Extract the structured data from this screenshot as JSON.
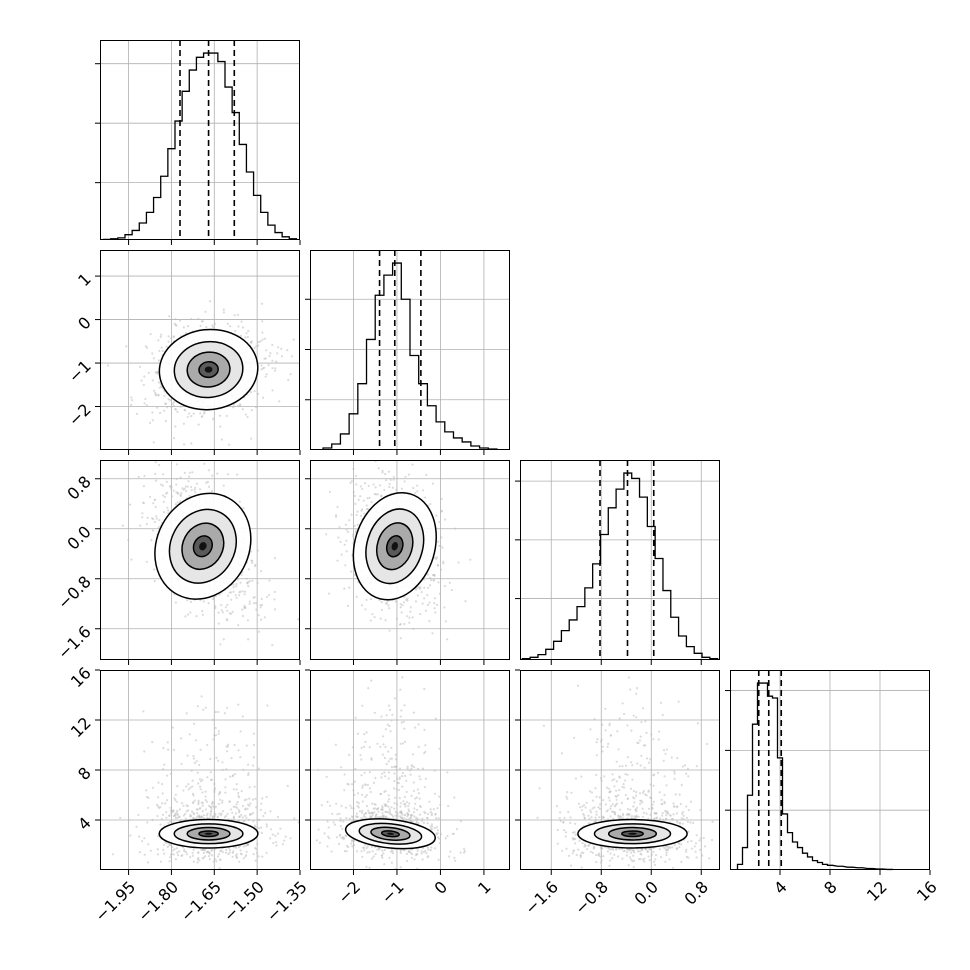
{
  "chart_data": {
    "type": "corner",
    "grid": true,
    "parameters": [
      {
        "id": "p0",
        "range": [
          -2.05,
          -1.35
        ],
        "ticks": [
          -1.95,
          -1.8,
          -1.65,
          -1.5,
          -1.35
        ],
        "tick_labels": [
          "−1.95",
          "−1.80",
          "−1.65",
          "−1.50",
          "−1.35"
        ],
        "quantiles": [
          -1.77,
          -1.67,
          -1.58
        ],
        "hist_x": [
          -2.025,
          -2.0,
          -1.975,
          -1.95,
          -1.925,
          -1.9,
          -1.875,
          -1.85,
          -1.825,
          -1.8,
          -1.775,
          -1.75,
          -1.725,
          -1.7,
          -1.675,
          -1.65,
          -1.625,
          -1.6,
          -1.575,
          -1.55,
          -1.525,
          -1.5,
          -1.475,
          -1.45,
          -1.425,
          -1.4,
          -1.375
        ],
        "hist_y": [
          0.3,
          0.6,
          1.0,
          2.5,
          4.5,
          8,
          13,
          20,
          30,
          43,
          56,
          70,
          80,
          86,
          88,
          88,
          84,
          72,
          60,
          45,
          32,
          21,
          13,
          7,
          3.5,
          1.5,
          0.6
        ],
        "hist_ticks": [
          27,
          55,
          83
        ]
      },
      {
        "id": "p1",
        "range": [
          -3.0,
          1.6
        ],
        "ticks": [
          -2,
          -1,
          0,
          1
        ],
        "tick_labels": [
          "−2",
          "−1",
          "0",
          "1"
        ],
        "quantiles": [
          -1.4,
          -1.05,
          -0.45
        ],
        "hist_x": [
          -2.6,
          -2.4,
          -2.2,
          -2.0,
          -1.8,
          -1.6,
          -1.4,
          -1.2,
          -1.0,
          -0.8,
          -0.6,
          -0.4,
          -0.2,
          0.0,
          0.2,
          0.4,
          0.6,
          0.8,
          1.0,
          1.2
        ],
        "hist_y": [
          1,
          3,
          8,
          18,
          33,
          55,
          77,
          87,
          93,
          75,
          47,
          33,
          22,
          14,
          9,
          6,
          4,
          2,
          1,
          0.5
        ],
        "hist_ticks": [
          25,
          50,
          75
        ]
      },
      {
        "id": "p2",
        "range": [
          -2.1,
          1.1
        ],
        "ticks": [
          -1.6,
          -0.8,
          0.0,
          0.8
        ],
        "tick_labels": [
          "−1.6",
          "−0.8",
          "0.0",
          "0.8"
        ],
        "quantiles": [
          -0.82,
          -0.38,
          0.04
        ],
        "hist_x": [
          -2.0,
          -1.875,
          -1.75,
          -1.625,
          -1.5,
          -1.375,
          -1.25,
          -1.125,
          -1.0,
          -0.875,
          -0.75,
          -0.625,
          -0.5,
          -0.375,
          -0.25,
          -0.125,
          0.0,
          0.125,
          0.25,
          0.375,
          0.5,
          0.625,
          0.75,
          0.875,
          1.0
        ],
        "hist_y": [
          0.5,
          1,
          2,
          4,
          7,
          11,
          15,
          20,
          27,
          36,
          47,
          57,
          64,
          70,
          68,
          61,
          50,
          38,
          26,
          16,
          9,
          5,
          2.5,
          1,
          0.5
        ],
        "hist_ticks": [
          23,
          45,
          67
        ]
      },
      {
        "id": "p3",
        "range": [
          0,
          16
        ],
        "ticks": [
          4,
          8,
          12,
          16
        ],
        "tick_labels": [
          "4",
          "8",
          "12",
          "16"
        ],
        "quantiles": [
          2.3,
          3.1,
          4.1
        ],
        "hist_x": [
          0.8,
          1.2,
          1.6,
          2.0,
          2.4,
          2.8,
          3.2,
          3.6,
          4.0,
          4.4,
          4.8,
          5.2,
          5.6,
          6.0,
          6.4,
          6.8,
          7.2,
          7.6,
          8.0,
          8.8,
          9.6,
          10.4,
          11.2,
          12.0,
          12.8
        ],
        "hist_y": [
          3,
          12,
          40,
          78,
          100,
          100,
          93,
          92,
          60,
          30,
          20,
          15,
          12,
          9,
          7,
          5,
          4,
          3,
          2.5,
          2,
          1.5,
          1.2,
          0.8,
          0.5,
          0.3
        ],
        "hist_ticks": [
          32,
          64,
          96
        ]
      }
    ],
    "pairs": [
      {
        "x": 0,
        "y": 1,
        "center": [
          -1.67,
          -1.15
        ],
        "spread": [
          0.075,
          0.4
        ],
        "corr": 0.15
      },
      {
        "x": 0,
        "y": 2,
        "center": [
          -1.69,
          -0.28
        ],
        "spread": [
          0.07,
          0.38
        ],
        "corr": -0.5
      },
      {
        "x": 1,
        "y": 2,
        "center": [
          -1.05,
          -0.28
        ],
        "spread": [
          0.4,
          0.38
        ],
        "corr": -0.25
      },
      {
        "x": 0,
        "y": 3,
        "center": [
          -1.67,
          2.9
        ],
        "spread": [
          0.075,
          0.9
        ],
        "corr": 0.0
      },
      {
        "x": 1,
        "y": 3,
        "center": [
          -1.15,
          2.9
        ],
        "spread": [
          0.45,
          0.9
        ],
        "corr": -0.2
      },
      {
        "x": 2,
        "y": 3,
        "center": [
          -0.3,
          2.9
        ],
        "spread": [
          0.38,
          0.9
        ],
        "corr": 0.0
      }
    ]
  }
}
